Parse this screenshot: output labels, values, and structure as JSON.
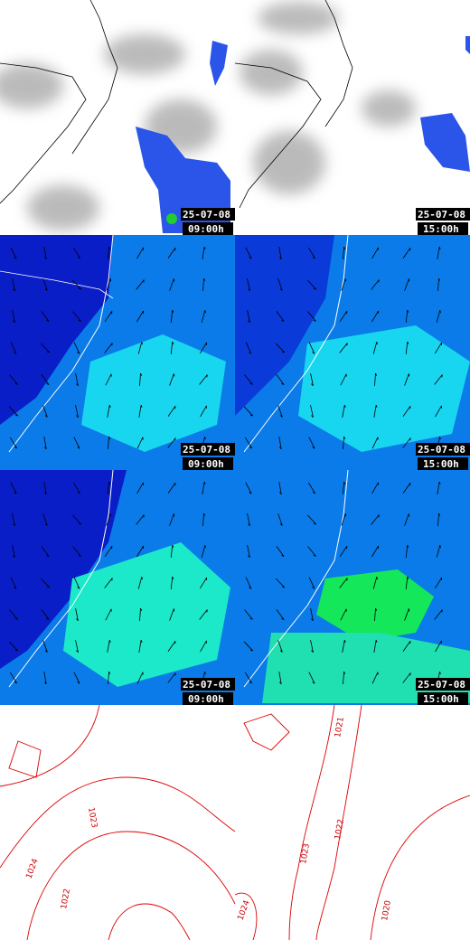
{
  "panels": [
    {
      "date": "25-07-08",
      "time": "09:00h"
    },
    {
      "date": "25-07-08",
      "time": "15:00h"
    },
    {
      "date": "25-07-08",
      "time": "09:00h"
    },
    {
      "date": "25-07-08",
      "time": "15:00h"
    },
    {
      "date": "25-07-08",
      "time": "09:00h"
    },
    {
      "date": "25-07-08",
      "time": "15:00h"
    }
  ],
  "isobars": {
    "left": [
      "1024",
      "1023",
      "1022"
    ],
    "right": [
      "1021",
      "1022",
      "1023",
      "1024",
      "1020"
    ]
  }
}
